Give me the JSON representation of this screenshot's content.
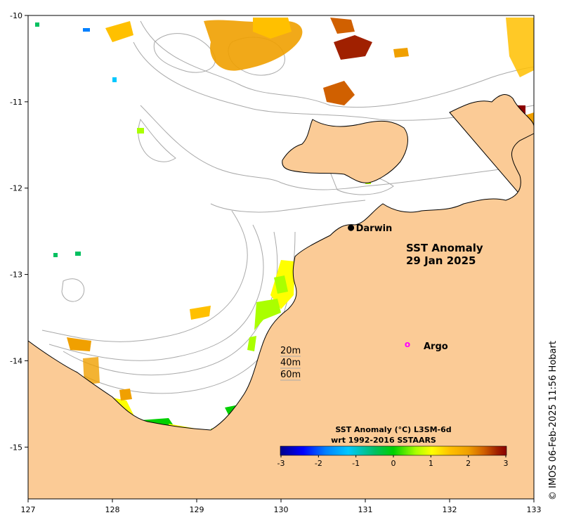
{
  "map": {
    "title_line1": "SST Anomaly",
    "title_line2": "29 Jan 2025",
    "x_ticks": [
      "127",
      "128",
      "129",
      "130",
      "131",
      "132",
      "133"
    ],
    "y_ticks": [
      "-10",
      "-11",
      "-12",
      "-13",
      "-14",
      "-15"
    ],
    "places": [
      {
        "name": "Darwin",
        "lon": 130.83,
        "lat": -12.46
      }
    ],
    "argo_label": "Argo",
    "argo_marker": "o",
    "argo_position": {
      "lon": 131.5,
      "lat": -13.81
    },
    "depth_labels": [
      "20m",
      "40m",
      "60m"
    ],
    "colorbar": {
      "title_line1": "SST Anomaly (°C) L3SM-6d",
      "title_line2": "wrt 1992-2016 SSTAARS",
      "ticks": [
        "-3",
        "-2",
        "-1",
        "0",
        "1",
        "2",
        "3"
      ],
      "range": [
        -3,
        3
      ]
    },
    "credit": "© IMOS 06-Feb-2025 11:56 Hobart",
    "colors": {
      "land": "#fbcb96",
      "coast": "#000000",
      "bathymetry": "#a9a9a9",
      "argo": "#ff00ff",
      "colormap": [
        "#00008b",
        "#0000ff",
        "#0080ff",
        "#00c8ff",
        "#00c060",
        "#00d000",
        "#aaff00",
        "#ffff00",
        "#ffc000",
        "#f0a000",
        "#d06000",
        "#a02000",
        "#8b0000"
      ]
    }
  }
}
